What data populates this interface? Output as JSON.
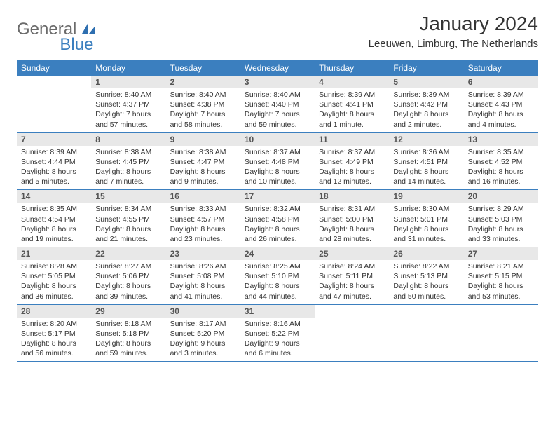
{
  "logo": {
    "text1": "General",
    "text2": "Blue"
  },
  "title": "January 2024",
  "location": "Leeuwen, Limburg, The Netherlands",
  "colors": {
    "header_bg": "#3b7fbf",
    "header_text": "#ffffff",
    "daynum_bg": "#e8e8e8",
    "daynum_text": "#555555",
    "body_text": "#333333",
    "rule": "#3b7fbf",
    "logo_gray": "#6b6b6b",
    "logo_blue": "#3b7fbf"
  },
  "typography": {
    "title_fontsize": 28,
    "location_fontsize": 15,
    "dayheader_fontsize": 12,
    "daynum_fontsize": 12,
    "body_fontsize": 10.5
  },
  "dayNames": [
    "Sunday",
    "Monday",
    "Tuesday",
    "Wednesday",
    "Thursday",
    "Friday",
    "Saturday"
  ],
  "weeks": [
    [
      {
        "n": "",
        "sr": "",
        "ss": "",
        "dl": ""
      },
      {
        "n": "1",
        "sr": "Sunrise: 8:40 AM",
        "ss": "Sunset: 4:37 PM",
        "dl": "Daylight: 7 hours and 57 minutes."
      },
      {
        "n": "2",
        "sr": "Sunrise: 8:40 AM",
        "ss": "Sunset: 4:38 PM",
        "dl": "Daylight: 7 hours and 58 minutes."
      },
      {
        "n": "3",
        "sr": "Sunrise: 8:40 AM",
        "ss": "Sunset: 4:40 PM",
        "dl": "Daylight: 7 hours and 59 minutes."
      },
      {
        "n": "4",
        "sr": "Sunrise: 8:39 AM",
        "ss": "Sunset: 4:41 PM",
        "dl": "Daylight: 8 hours and 1 minute."
      },
      {
        "n": "5",
        "sr": "Sunrise: 8:39 AM",
        "ss": "Sunset: 4:42 PM",
        "dl": "Daylight: 8 hours and 2 minutes."
      },
      {
        "n": "6",
        "sr": "Sunrise: 8:39 AM",
        "ss": "Sunset: 4:43 PM",
        "dl": "Daylight: 8 hours and 4 minutes."
      }
    ],
    [
      {
        "n": "7",
        "sr": "Sunrise: 8:39 AM",
        "ss": "Sunset: 4:44 PM",
        "dl": "Daylight: 8 hours and 5 minutes."
      },
      {
        "n": "8",
        "sr": "Sunrise: 8:38 AM",
        "ss": "Sunset: 4:45 PM",
        "dl": "Daylight: 8 hours and 7 minutes."
      },
      {
        "n": "9",
        "sr": "Sunrise: 8:38 AM",
        "ss": "Sunset: 4:47 PM",
        "dl": "Daylight: 8 hours and 9 minutes."
      },
      {
        "n": "10",
        "sr": "Sunrise: 8:37 AM",
        "ss": "Sunset: 4:48 PM",
        "dl": "Daylight: 8 hours and 10 minutes."
      },
      {
        "n": "11",
        "sr": "Sunrise: 8:37 AM",
        "ss": "Sunset: 4:49 PM",
        "dl": "Daylight: 8 hours and 12 minutes."
      },
      {
        "n": "12",
        "sr": "Sunrise: 8:36 AM",
        "ss": "Sunset: 4:51 PM",
        "dl": "Daylight: 8 hours and 14 minutes."
      },
      {
        "n": "13",
        "sr": "Sunrise: 8:35 AM",
        "ss": "Sunset: 4:52 PM",
        "dl": "Daylight: 8 hours and 16 minutes."
      }
    ],
    [
      {
        "n": "14",
        "sr": "Sunrise: 8:35 AM",
        "ss": "Sunset: 4:54 PM",
        "dl": "Daylight: 8 hours and 19 minutes."
      },
      {
        "n": "15",
        "sr": "Sunrise: 8:34 AM",
        "ss": "Sunset: 4:55 PM",
        "dl": "Daylight: 8 hours and 21 minutes."
      },
      {
        "n": "16",
        "sr": "Sunrise: 8:33 AM",
        "ss": "Sunset: 4:57 PM",
        "dl": "Daylight: 8 hours and 23 minutes."
      },
      {
        "n": "17",
        "sr": "Sunrise: 8:32 AM",
        "ss": "Sunset: 4:58 PM",
        "dl": "Daylight: 8 hours and 26 minutes."
      },
      {
        "n": "18",
        "sr": "Sunrise: 8:31 AM",
        "ss": "Sunset: 5:00 PM",
        "dl": "Daylight: 8 hours and 28 minutes."
      },
      {
        "n": "19",
        "sr": "Sunrise: 8:30 AM",
        "ss": "Sunset: 5:01 PM",
        "dl": "Daylight: 8 hours and 31 minutes."
      },
      {
        "n": "20",
        "sr": "Sunrise: 8:29 AM",
        "ss": "Sunset: 5:03 PM",
        "dl": "Daylight: 8 hours and 33 minutes."
      }
    ],
    [
      {
        "n": "21",
        "sr": "Sunrise: 8:28 AM",
        "ss": "Sunset: 5:05 PM",
        "dl": "Daylight: 8 hours and 36 minutes."
      },
      {
        "n": "22",
        "sr": "Sunrise: 8:27 AM",
        "ss": "Sunset: 5:06 PM",
        "dl": "Daylight: 8 hours and 39 minutes."
      },
      {
        "n": "23",
        "sr": "Sunrise: 8:26 AM",
        "ss": "Sunset: 5:08 PM",
        "dl": "Daylight: 8 hours and 41 minutes."
      },
      {
        "n": "24",
        "sr": "Sunrise: 8:25 AM",
        "ss": "Sunset: 5:10 PM",
        "dl": "Daylight: 8 hours and 44 minutes."
      },
      {
        "n": "25",
        "sr": "Sunrise: 8:24 AM",
        "ss": "Sunset: 5:11 PM",
        "dl": "Daylight: 8 hours and 47 minutes."
      },
      {
        "n": "26",
        "sr": "Sunrise: 8:22 AM",
        "ss": "Sunset: 5:13 PM",
        "dl": "Daylight: 8 hours and 50 minutes."
      },
      {
        "n": "27",
        "sr": "Sunrise: 8:21 AM",
        "ss": "Sunset: 5:15 PM",
        "dl": "Daylight: 8 hours and 53 minutes."
      }
    ],
    [
      {
        "n": "28",
        "sr": "Sunrise: 8:20 AM",
        "ss": "Sunset: 5:17 PM",
        "dl": "Daylight: 8 hours and 56 minutes."
      },
      {
        "n": "29",
        "sr": "Sunrise: 8:18 AM",
        "ss": "Sunset: 5:18 PM",
        "dl": "Daylight: 8 hours and 59 minutes."
      },
      {
        "n": "30",
        "sr": "Sunrise: 8:17 AM",
        "ss": "Sunset: 5:20 PM",
        "dl": "Daylight: 9 hours and 3 minutes."
      },
      {
        "n": "31",
        "sr": "Sunrise: 8:16 AM",
        "ss": "Sunset: 5:22 PM",
        "dl": "Daylight: 9 hours and 6 minutes."
      },
      {
        "n": "",
        "sr": "",
        "ss": "",
        "dl": ""
      },
      {
        "n": "",
        "sr": "",
        "ss": "",
        "dl": ""
      },
      {
        "n": "",
        "sr": "",
        "ss": "",
        "dl": ""
      }
    ]
  ]
}
